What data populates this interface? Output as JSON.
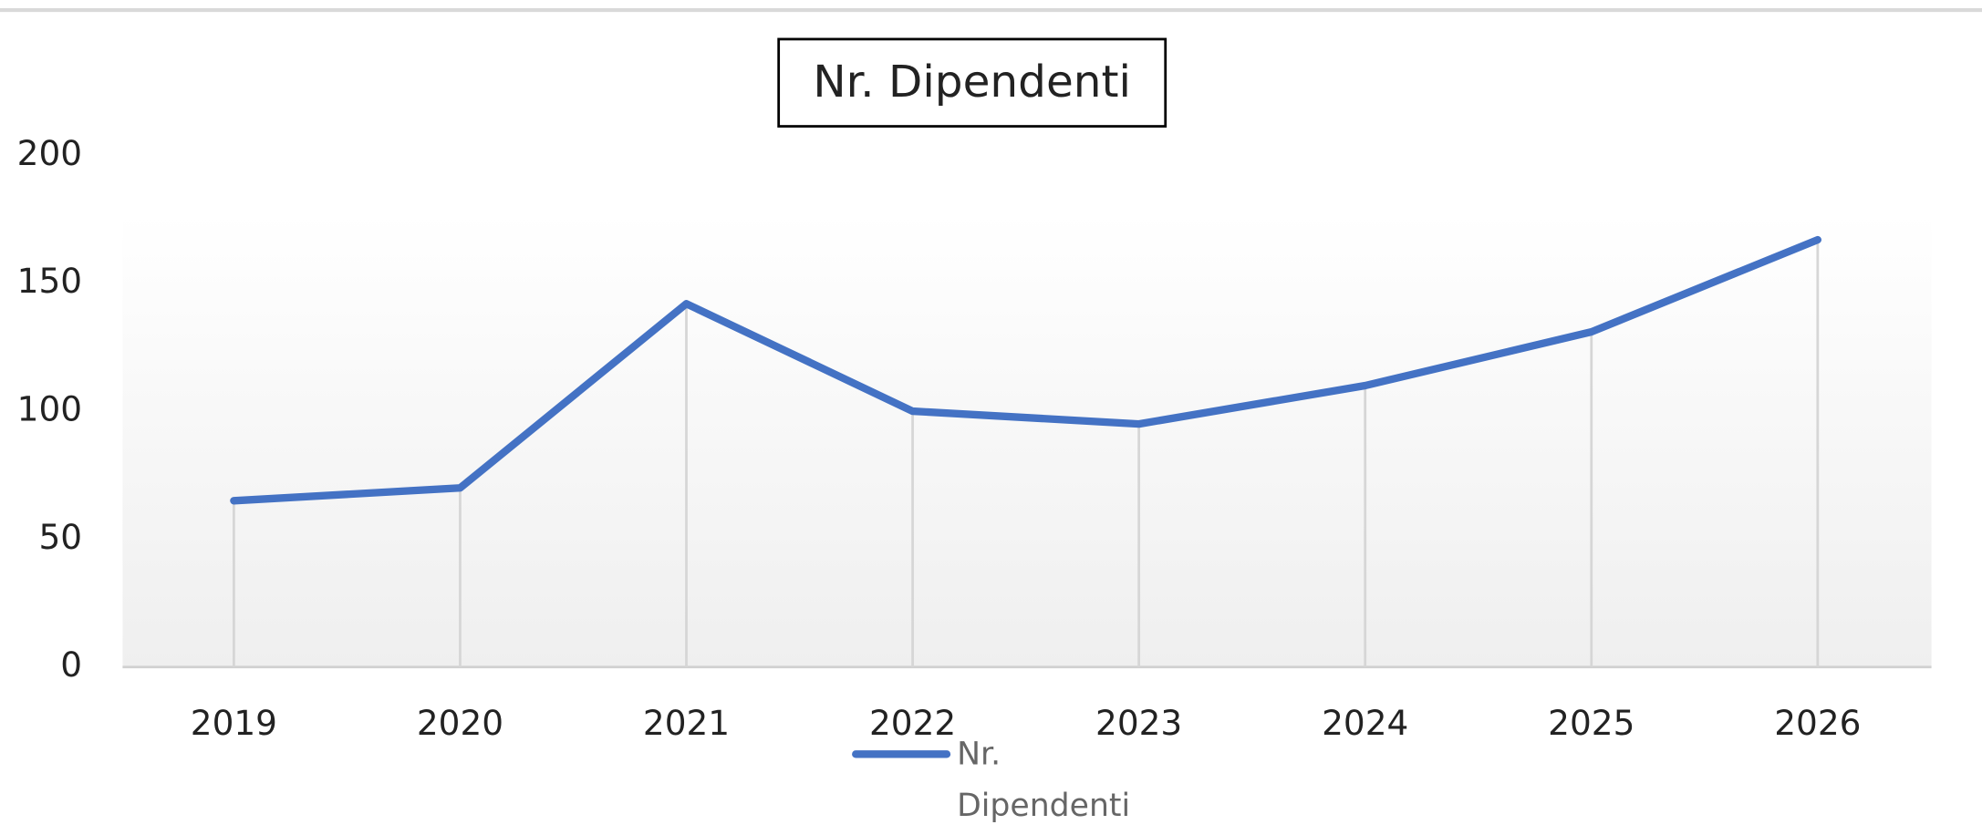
{
  "chart_data": {
    "type": "line",
    "title": "Nr. Dipendenti",
    "categories": [
      "2019",
      "2020",
      "2021",
      "2022",
      "2023",
      "2024",
      "2025",
      "2026"
    ],
    "series": [
      {
        "name": "Nr. Dipendenti",
        "color": "#4472c4",
        "values": [
          65,
          70,
          142,
          100,
          95,
          110,
          131,
          167
        ]
      }
    ],
    "ylim": [
      0,
      200
    ],
    "yticks": [
      0,
      50,
      100,
      150,
      200
    ],
    "drop_lines": true,
    "legend": "bottom"
  }
}
